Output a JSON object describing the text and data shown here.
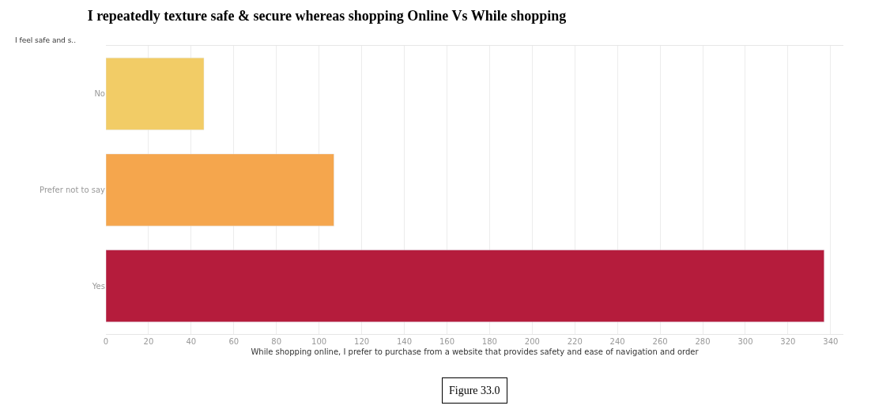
{
  "chart_data": {
    "type": "bar",
    "orientation": "horizontal",
    "title": "I repeatedly texture safe & secure whereas shopping Online Vs While shopping",
    "ylabel": "I feel safe and s..",
    "xlabel": "While shopping online, I prefer to purchase from a website that provides safety and ease of navigation and order",
    "categories": [
      "No",
      "Prefer not to say",
      "Yes"
    ],
    "values": [
      46,
      107,
      337
    ],
    "colors": [
      "#f2cc66",
      "#f5a64d",
      "#b51c3c"
    ],
    "xlim": [
      0,
      346
    ],
    "xticks": [
      0,
      20,
      40,
      60,
      80,
      100,
      120,
      140,
      160,
      180,
      200,
      220,
      240,
      260,
      280,
      300,
      320,
      340
    ],
    "grid": "x",
    "annotations": [
      "Figure 33.0"
    ]
  }
}
